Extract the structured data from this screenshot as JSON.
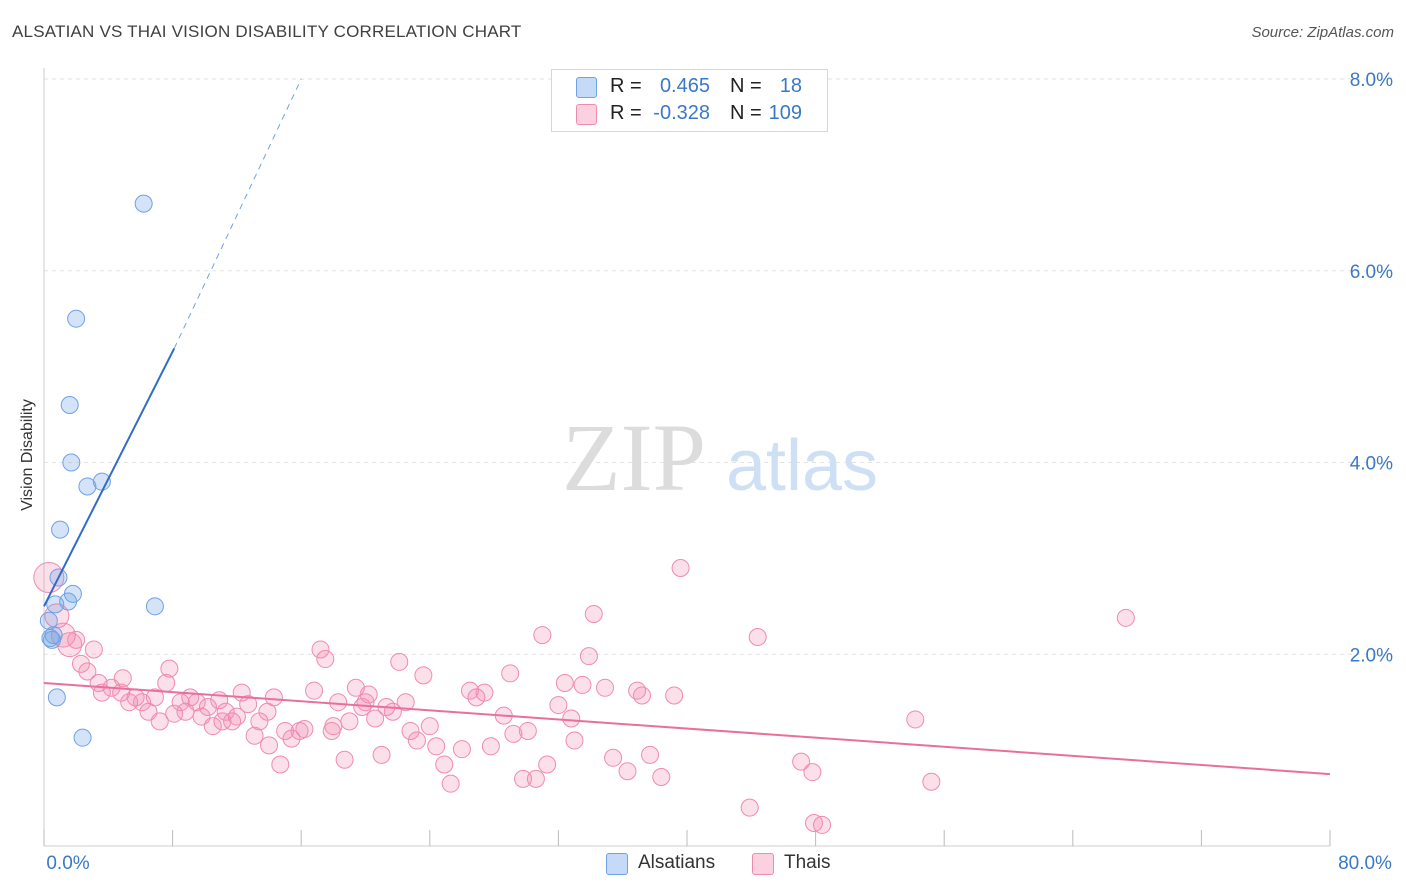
{
  "title": "ALSATIAN VS THAI VISION DISABILITY CORRELATION CHART",
  "source": "Source: ZipAtlas.com",
  "watermark": {
    "zip": "ZIP",
    "atlas": "atlas"
  },
  "legend_top": {
    "rows": [
      {
        "r_label": "R =",
        "r_value": "0.465",
        "n_label": "N =",
        "n_value": "18",
        "color": "#6fa2e6"
      },
      {
        "r_label": "R =",
        "r_value": "-0.328",
        "n_label": "N =",
        "n_value": "109",
        "color": "#f08bb0"
      }
    ]
  },
  "legend_bottom": [
    {
      "label": "Alsatians",
      "color": "#6fa2e6"
    },
    {
      "label": "Thais",
      "color": "#f08bb0"
    }
  ],
  "chart_data": {
    "type": "scatter",
    "title": "ALSATIAN VS THAI VISION DISABILITY CORRELATION CHART",
    "xlabel": "",
    "ylabel": "Vision Disability",
    "xlim": [
      0,
      80
    ],
    "ylim": [
      0,
      8.5
    ],
    "x_tick_labels": [
      "0.0%",
      "80.0%"
    ],
    "y_ticks": [
      2,
      4,
      6,
      8
    ],
    "y_tick_labels": [
      "2.0%",
      "4.0%",
      "6.0%",
      "8.0%"
    ],
    "grid": true,
    "legend": "top-center",
    "series": [
      {
        "name": "Alsatians",
        "color": "#6fa2e6",
        "R": 0.465,
        "N": 18,
        "trend": {
          "x": [
            0,
            8.1
          ],
          "y": [
            2.5,
            5.19
          ],
          "dashed_to": {
            "x": 16.0,
            "y": 8.0
          }
        },
        "points": [
          {
            "x": 6.2,
            "y": 6.7
          },
          {
            "x": 2.0,
            "y": 5.5
          },
          {
            "x": 1.6,
            "y": 4.6
          },
          {
            "x": 1.7,
            "y": 4.0
          },
          {
            "x": 3.6,
            "y": 3.8
          },
          {
            "x": 2.7,
            "y": 3.75
          },
          {
            "x": 1.0,
            "y": 3.3
          },
          {
            "x": 0.9,
            "y": 2.8
          },
          {
            "x": 1.8,
            "y": 2.63
          },
          {
            "x": 6.9,
            "y": 2.5
          },
          {
            "x": 1.5,
            "y": 2.55
          },
          {
            "x": 0.7,
            "y": 2.52
          },
          {
            "x": 0.6,
            "y": 2.2
          },
          {
            "x": 0.4,
            "y": 2.17
          },
          {
            "x": 0.3,
            "y": 2.35
          },
          {
            "x": 0.8,
            "y": 1.55
          },
          {
            "x": 2.4,
            "y": 1.13
          },
          {
            "x": 0.5,
            "y": 2.15
          }
        ]
      },
      {
        "name": "Thais",
        "color": "#f08bb0",
        "R": -0.328,
        "N": 109,
        "trend": {
          "x": [
            0,
            80
          ],
          "y": [
            1.7,
            0.75
          ]
        },
        "points": [
          {
            "x": 0.3,
            "y": 2.8
          },
          {
            "x": 0.8,
            "y": 2.4
          },
          {
            "x": 1.2,
            "y": 2.2
          },
          {
            "x": 1.6,
            "y": 2.1
          },
          {
            "x": 2.3,
            "y": 1.9
          },
          {
            "x": 3.1,
            "y": 2.05
          },
          {
            "x": 2.7,
            "y": 1.82
          },
          {
            "x": 3.4,
            "y": 1.7
          },
          {
            "x": 3.6,
            "y": 1.6
          },
          {
            "x": 4.2,
            "y": 1.65
          },
          {
            "x": 4.8,
            "y": 1.6
          },
          {
            "x": 4.9,
            "y": 1.75
          },
          {
            "x": 5.3,
            "y": 1.5
          },
          {
            "x": 5.7,
            "y": 1.55
          },
          {
            "x": 6.1,
            "y": 1.5
          },
          {
            "x": 6.5,
            "y": 1.4
          },
          {
            "x": 6.9,
            "y": 1.55
          },
          {
            "x": 7.2,
            "y": 1.3
          },
          {
            "x": 7.6,
            "y": 1.7
          },
          {
            "x": 7.8,
            "y": 1.85
          },
          {
            "x": 8.1,
            "y": 1.38
          },
          {
            "x": 8.5,
            "y": 1.5
          },
          {
            "x": 8.8,
            "y": 1.4
          },
          {
            "x": 9.1,
            "y": 1.55
          },
          {
            "x": 9.5,
            "y": 1.5
          },
          {
            "x": 9.8,
            "y": 1.35
          },
          {
            "x": 10.2,
            "y": 1.45
          },
          {
            "x": 10.5,
            "y": 1.25
          },
          {
            "x": 10.9,
            "y": 1.52
          },
          {
            "x": 11.3,
            "y": 1.4
          },
          {
            "x": 11.7,
            "y": 1.3
          },
          {
            "x": 12.0,
            "y": 1.35
          },
          {
            "x": 12.3,
            "y": 1.6
          },
          {
            "x": 12.7,
            "y": 1.48
          },
          {
            "x": 13.1,
            "y": 1.15
          },
          {
            "x": 13.4,
            "y": 1.3
          },
          {
            "x": 13.9,
            "y": 1.4
          },
          {
            "x": 14.3,
            "y": 1.55
          },
          {
            "x": 14.7,
            "y": 0.85
          },
          {
            "x": 15.0,
            "y": 1.2
          },
          {
            "x": 15.4,
            "y": 1.12
          },
          {
            "x": 15.9,
            "y": 1.2
          },
          {
            "x": 16.2,
            "y": 1.22
          },
          {
            "x": 16.8,
            "y": 1.62
          },
          {
            "x": 17.2,
            "y": 2.05
          },
          {
            "x": 17.5,
            "y": 1.95
          },
          {
            "x": 17.9,
            "y": 1.2
          },
          {
            "x": 18.3,
            "y": 1.5
          },
          {
            "x": 18.7,
            "y": 0.9
          },
          {
            "x": 19.0,
            "y": 1.3
          },
          {
            "x": 19.4,
            "y": 1.65
          },
          {
            "x": 19.8,
            "y": 1.45
          },
          {
            "x": 20.2,
            "y": 1.58
          },
          {
            "x": 20.6,
            "y": 1.33
          },
          {
            "x": 21.0,
            "y": 0.95
          },
          {
            "x": 21.3,
            "y": 1.45
          },
          {
            "x": 21.7,
            "y": 1.4
          },
          {
            "x": 22.1,
            "y": 1.92
          },
          {
            "x": 22.5,
            "y": 1.5
          },
          {
            "x": 22.8,
            "y": 1.2
          },
          {
            "x": 23.2,
            "y": 1.1
          },
          {
            "x": 23.6,
            "y": 1.78
          },
          {
            "x": 24.0,
            "y": 1.25
          },
          {
            "x": 24.4,
            "y": 1.04
          },
          {
            "x": 24.9,
            "y": 0.85
          },
          {
            "x": 25.3,
            "y": 0.65
          },
          {
            "x": 26.5,
            "y": 1.62
          },
          {
            "x": 26.9,
            "y": 1.55
          },
          {
            "x": 27.4,
            "y": 1.6
          },
          {
            "x": 27.8,
            "y": 1.04
          },
          {
            "x": 28.6,
            "y": 1.36
          },
          {
            "x": 29.0,
            "y": 1.8
          },
          {
            "x": 29.2,
            "y": 1.17
          },
          {
            "x": 29.8,
            "y": 0.7
          },
          {
            "x": 30.1,
            "y": 1.2
          },
          {
            "x": 30.6,
            "y": 0.7
          },
          {
            "x": 31.0,
            "y": 2.2
          },
          {
            "x": 31.3,
            "y": 0.85
          },
          {
            "x": 32.0,
            "y": 1.47
          },
          {
            "x": 32.4,
            "y": 1.7
          },
          {
            "x": 32.8,
            "y": 1.33
          },
          {
            "x": 33.5,
            "y": 1.68
          },
          {
            "x": 33.9,
            "y": 1.98
          },
          {
            "x": 34.2,
            "y": 2.42
          },
          {
            "x": 34.9,
            "y": 1.65
          },
          {
            "x": 35.4,
            "y": 0.92
          },
          {
            "x": 36.3,
            "y": 0.78
          },
          {
            "x": 36.9,
            "y": 1.62
          },
          {
            "x": 37.2,
            "y": 1.57
          },
          {
            "x": 37.7,
            "y": 0.95
          },
          {
            "x": 38.4,
            "y": 0.72
          },
          {
            "x": 39.2,
            "y": 1.57
          },
          {
            "x": 39.6,
            "y": 2.9
          },
          {
            "x": 43.9,
            "y": 0.4
          },
          {
            "x": 44.4,
            "y": 2.18
          },
          {
            "x": 47.1,
            "y": 0.88
          },
          {
            "x": 47.8,
            "y": 0.77
          },
          {
            "x": 47.9,
            "y": 0.24
          },
          {
            "x": 48.4,
            "y": 0.22
          },
          {
            "x": 54.2,
            "y": 1.32
          },
          {
            "x": 55.2,
            "y": 0.67
          },
          {
            "x": 67.3,
            "y": 2.38
          },
          {
            "x": 11.1,
            "y": 1.3
          },
          {
            "x": 14.0,
            "y": 1.05
          },
          {
            "x": 18.0,
            "y": 1.25
          },
          {
            "x": 20.0,
            "y": 1.5
          },
          {
            "x": 26.0,
            "y": 1.01
          },
          {
            "x": 33.0,
            "y": 1.1
          },
          {
            "x": 2.0,
            "y": 2.15
          }
        ]
      }
    ]
  }
}
